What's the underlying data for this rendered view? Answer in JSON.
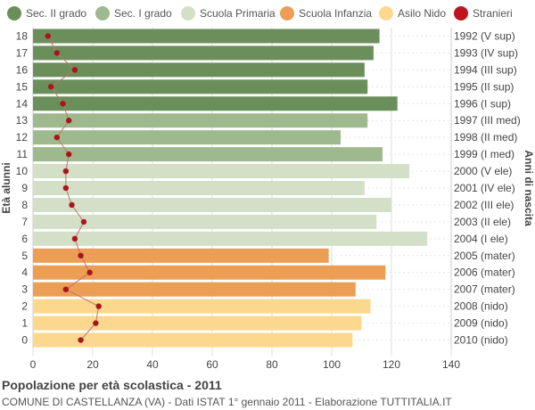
{
  "footer": {
    "title": "Popolazione per età scolastica - 2011",
    "subtitle": "COMUNE DI CASTELLANZA (VA) - Dati ISTAT 1° gennaio 2011 - Elaborazione TUTTITALIA.IT"
  },
  "chart_data": {
    "type": "bar",
    "orientation": "horizontal",
    "ylabel_left": "Età alunni",
    "ylabel_right": "Anni di nascita",
    "xlim": [
      0,
      140
    ],
    "x_ticks": [
      0,
      20,
      40,
      60,
      80,
      100,
      120,
      140
    ],
    "grid": true,
    "legend_position": "top",
    "legend": [
      {
        "name": "Sec. II grado",
        "color": "#6b8f5a"
      },
      {
        "name": "Sec. I grado",
        "color": "#9eb98e"
      },
      {
        "name": "Scuola Primaria",
        "color": "#d3dfc6"
      },
      {
        "name": "Scuola Infanzia",
        "color": "#ec9e55"
      },
      {
        "name": "Asilo Nido",
        "color": "#fcd88f"
      },
      {
        "name": "Stranieri",
        "color": "#c0141c"
      }
    ],
    "rows": [
      {
        "age": "18",
        "year": "1992 (V sup)",
        "value": 116,
        "stranieri": 5,
        "group": 0
      },
      {
        "age": "17",
        "year": "1993 (IV sup)",
        "value": 114,
        "stranieri": 8,
        "group": 0
      },
      {
        "age": "16",
        "year": "1994 (III sup)",
        "value": 111,
        "stranieri": 14,
        "group": 0
      },
      {
        "age": "15",
        "year": "1995 (II sup)",
        "value": 112,
        "stranieri": 6,
        "group": 0
      },
      {
        "age": "14",
        "year": "1996 (I sup)",
        "value": 122,
        "stranieri": 10,
        "group": 0
      },
      {
        "age": "13",
        "year": "1997 (III med)",
        "value": 112,
        "stranieri": 12,
        "group": 1
      },
      {
        "age": "12",
        "year": "1998 (II med)",
        "value": 103,
        "stranieri": 8,
        "group": 1
      },
      {
        "age": "11",
        "year": "1999 (I med)",
        "value": 117,
        "stranieri": 12,
        "group": 1
      },
      {
        "age": "10",
        "year": "2000 (V ele)",
        "value": 126,
        "stranieri": 11,
        "group": 2
      },
      {
        "age": "9",
        "year": "2001 (IV ele)",
        "value": 111,
        "stranieri": 11,
        "group": 2
      },
      {
        "age": "8",
        "year": "2002 (III ele)",
        "value": 120,
        "stranieri": 13,
        "group": 2
      },
      {
        "age": "7",
        "year": "2003 (II ele)",
        "value": 115,
        "stranieri": 17,
        "group": 2
      },
      {
        "age": "6",
        "year": "2004 (I ele)",
        "value": 132,
        "stranieri": 14,
        "group": 2
      },
      {
        "age": "5",
        "year": "2005 (mater)",
        "value": 99,
        "stranieri": 16,
        "group": 3
      },
      {
        "age": "4",
        "year": "2006 (mater)",
        "value": 118,
        "stranieri": 19,
        "group": 3
      },
      {
        "age": "3",
        "year": "2007 (mater)",
        "value": 108,
        "stranieri": 11,
        "group": 3
      },
      {
        "age": "2",
        "year": "2008 (nido)",
        "value": 113,
        "stranieri": 22,
        "group": 4
      },
      {
        "age": "1",
        "year": "2009 (nido)",
        "value": 110,
        "stranieri": 21,
        "group": 4
      },
      {
        "age": "0",
        "year": "2010 (nido)",
        "value": 107,
        "stranieri": 16,
        "group": 4
      }
    ]
  }
}
